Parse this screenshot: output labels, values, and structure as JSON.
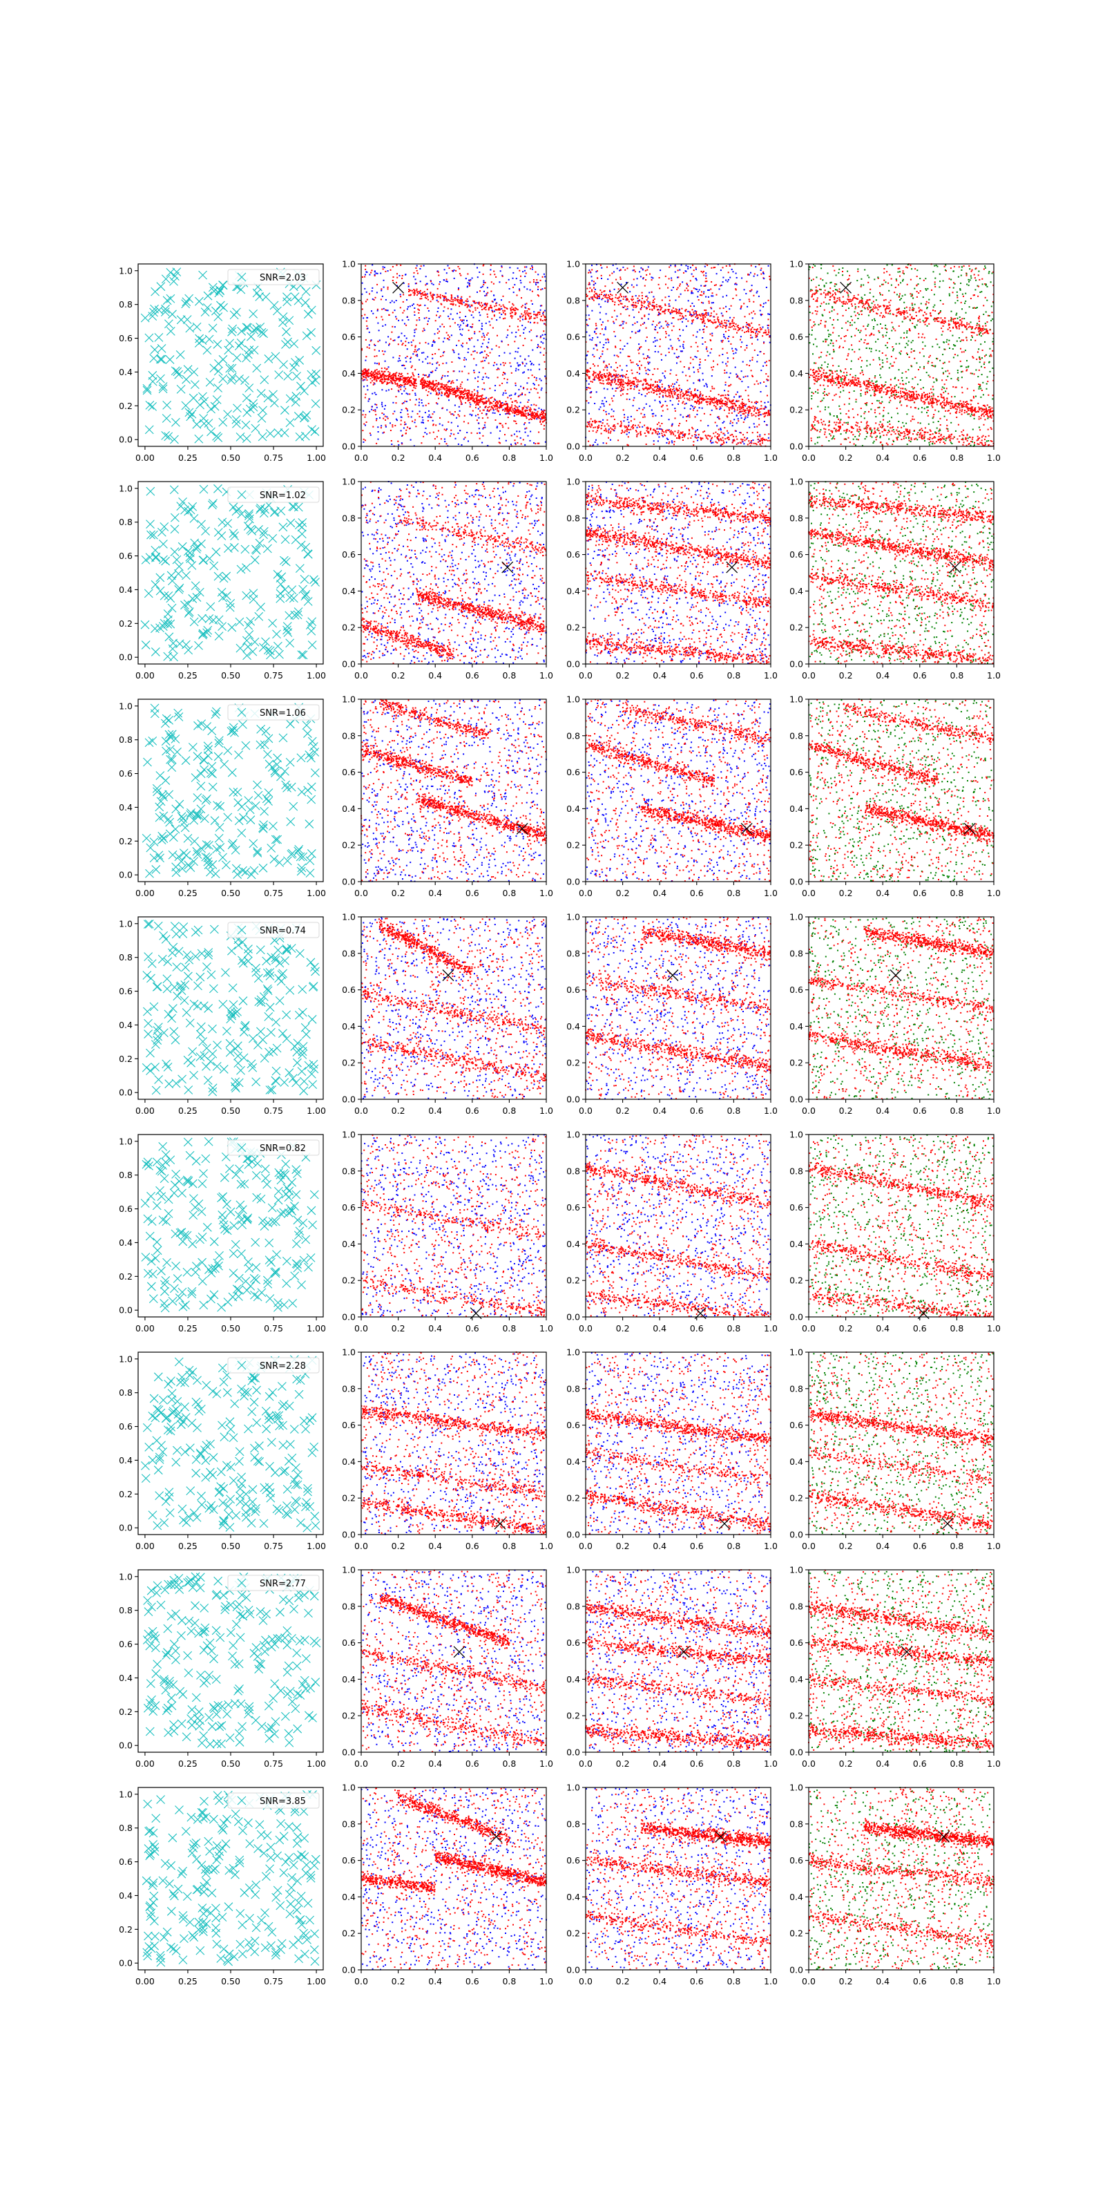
{
  "chart_data": {
    "type": "scatter",
    "grid": false,
    "layout": "8 rows x 4 columns of scatter subplots",
    "colors": {
      "cross_marker": "#19bfbf",
      "series_red": "#ff0000",
      "series_blue": "#0000ff",
      "series_green": "#008000",
      "target_marker": "#000000"
    },
    "column_axes": [
      {
        "column": 1,
        "xlim": [
          -0.04,
          1.04
        ],
        "ylim": [
          -0.04,
          1.04
        ],
        "xticks": [
          0.0,
          0.25,
          0.5,
          0.75,
          1.0
        ],
        "xtick_labels": [
          "0.00",
          "0.25",
          "0.50",
          "0.75",
          "1.00"
        ],
        "yticks": [
          0.0,
          0.2,
          0.4,
          0.6,
          0.8,
          1.0
        ],
        "ytick_labels": [
          "0.0",
          "0.2",
          "0.4",
          "0.6",
          "0.8",
          "1.0"
        ]
      },
      {
        "column": 2,
        "xlim": [
          0,
          1
        ],
        "ylim": [
          0,
          1
        ],
        "xticks": [
          0.0,
          0.2,
          0.4,
          0.6,
          0.8,
          1.0
        ],
        "xtick_labels": [
          "0.0",
          "0.2",
          "0.4",
          "0.6",
          "0.8",
          "1.0"
        ],
        "yticks": [
          0.0,
          0.2,
          0.4,
          0.6,
          0.8,
          1.0
        ],
        "ytick_labels": [
          "0.0",
          "0.2",
          "0.4",
          "0.6",
          "0.8",
          "1.0"
        ]
      },
      {
        "column": 3,
        "xlim": [
          0,
          1
        ],
        "ylim": [
          0,
          1
        ],
        "xticks": [
          0.0,
          0.2,
          0.4,
          0.6,
          0.8,
          1.0
        ],
        "xtick_labels": [
          "0.0",
          "0.2",
          "0.4",
          "0.6",
          "0.8",
          "1.0"
        ],
        "yticks": [
          0.0,
          0.2,
          0.4,
          0.6,
          0.8,
          1.0
        ],
        "ytick_labels": [
          "0.0",
          "0.2",
          "0.4",
          "0.6",
          "0.8",
          "1.0"
        ]
      },
      {
        "column": 4,
        "xlim": [
          0,
          1
        ],
        "ylim": [
          0,
          1
        ],
        "xticks": [
          0.0,
          0.2,
          0.4,
          0.6,
          0.8,
          1.0
        ],
        "xtick_labels": [
          "0.0",
          "0.2",
          "0.4",
          "0.6",
          "0.8",
          "1.0"
        ],
        "yticks": [
          0.0,
          0.2,
          0.4,
          0.6,
          0.8,
          1.0
        ],
        "ytick_labels": [
          "0.0",
          "0.2",
          "0.4",
          "0.6",
          "0.8",
          "1.0"
        ]
      }
    ],
    "rows": [
      {
        "legend": "SNR=2.03",
        "target": [
          0.2,
          0.87
        ],
        "col2_bands": [
          {
            "x0": 0.32,
            "x1": 1.0,
            "y0": 0.35,
            "y1": 0.15,
            "strength": 0.85
          },
          {
            "x0": 0.0,
            "x1": 0.3,
            "y0": 0.4,
            "y1": 0.35,
            "strength": 0.45
          },
          {
            "x0": 0.25,
            "x1": 1.0,
            "y0": 0.85,
            "y1": 0.7,
            "strength": 0.35
          }
        ],
        "col3_bands": [
          {
            "x0": 0.0,
            "x1": 1.0,
            "y0": 0.4,
            "y1": 0.18,
            "strength": 0.8
          },
          {
            "x0": 0.0,
            "x1": 1.0,
            "y0": 0.85,
            "y1": 0.62,
            "strength": 0.45
          },
          {
            "x0": 0.0,
            "x1": 1.0,
            "y0": 0.12,
            "y1": 0.02,
            "strength": 0.35
          }
        ],
        "col4_bands": [
          {
            "x0": 0.0,
            "x1": 1.0,
            "y0": 0.4,
            "y1": 0.18,
            "strength": 0.8
          },
          {
            "x0": 0.0,
            "x1": 1.0,
            "y0": 0.85,
            "y1": 0.62,
            "strength": 0.45
          },
          {
            "x0": 0.0,
            "x1": 1.0,
            "y0": 0.12,
            "y1": 0.02,
            "strength": 0.35
          }
        ]
      },
      {
        "legend": "SNR=1.02",
        "target": [
          0.79,
          0.53
        ],
        "col2_bands": [
          {
            "x0": 0.3,
            "x1": 1.0,
            "y0": 0.38,
            "y1": 0.2,
            "strength": 0.75
          },
          {
            "x0": 0.0,
            "x1": 0.5,
            "y0": 0.22,
            "y1": 0.05,
            "strength": 0.45
          },
          {
            "x0": 0.2,
            "x1": 1.0,
            "y0": 0.8,
            "y1": 0.62,
            "strength": 0.3
          }
        ],
        "col3_bands": [
          {
            "x0": 0.0,
            "x1": 1.0,
            "y0": 0.72,
            "y1": 0.55,
            "strength": 0.75
          },
          {
            "x0": 0.0,
            "x1": 1.0,
            "y0": 0.9,
            "y1": 0.8,
            "strength": 0.6
          },
          {
            "x0": 0.0,
            "x1": 1.0,
            "y0": 0.48,
            "y1": 0.33,
            "strength": 0.5
          },
          {
            "x0": 0.0,
            "x1": 1.0,
            "y0": 0.12,
            "y1": 0.02,
            "strength": 0.55
          }
        ],
        "col4_bands": [
          {
            "x0": 0.0,
            "x1": 1.0,
            "y0": 0.72,
            "y1": 0.55,
            "strength": 0.75
          },
          {
            "x0": 0.0,
            "x1": 1.0,
            "y0": 0.9,
            "y1": 0.8,
            "strength": 0.6
          },
          {
            "x0": 0.0,
            "x1": 1.0,
            "y0": 0.48,
            "y1": 0.33,
            "strength": 0.5
          },
          {
            "x0": 0.0,
            "x1": 1.0,
            "y0": 0.12,
            "y1": 0.02,
            "strength": 0.55
          }
        ]
      },
      {
        "legend": "SNR=1.06",
        "target": [
          0.87,
          0.29
        ],
        "col2_bands": [
          {
            "x0": 0.3,
            "x1": 1.0,
            "y0": 0.45,
            "y1": 0.25,
            "strength": 0.75
          },
          {
            "x0": 0.0,
            "x1": 0.6,
            "y0": 0.72,
            "y1": 0.55,
            "strength": 0.55
          },
          {
            "x0": 0.1,
            "x1": 0.7,
            "y0": 0.98,
            "y1": 0.8,
            "strength": 0.4
          }
        ],
        "col3_bands": [
          {
            "x0": 0.3,
            "x1": 1.0,
            "y0": 0.4,
            "y1": 0.25,
            "strength": 0.75
          },
          {
            "x0": 0.0,
            "x1": 0.7,
            "y0": 0.75,
            "y1": 0.55,
            "strength": 0.55
          },
          {
            "x0": 0.2,
            "x1": 1.0,
            "y0": 0.95,
            "y1": 0.78,
            "strength": 0.4
          }
        ],
        "col4_bands": [
          {
            "x0": 0.3,
            "x1": 1.0,
            "y0": 0.4,
            "y1": 0.25,
            "strength": 0.75
          },
          {
            "x0": 0.0,
            "x1": 0.7,
            "y0": 0.75,
            "y1": 0.55,
            "strength": 0.55
          },
          {
            "x0": 0.2,
            "x1": 1.0,
            "y0": 0.95,
            "y1": 0.78,
            "strength": 0.4
          }
        ]
      },
      {
        "legend": "SNR=0.74",
        "target": [
          0.47,
          0.68
        ],
        "col2_bands": [
          {
            "x0": 0.1,
            "x1": 0.6,
            "y0": 0.95,
            "y1": 0.7,
            "strength": 0.6
          },
          {
            "x0": 0.0,
            "x1": 1.0,
            "y0": 0.58,
            "y1": 0.38,
            "strength": 0.4
          },
          {
            "x0": 0.0,
            "x1": 1.0,
            "y0": 0.32,
            "y1": 0.12,
            "strength": 0.4
          }
        ],
        "col3_bands": [
          {
            "x0": 0.3,
            "x1": 1.0,
            "y0": 0.92,
            "y1": 0.8,
            "strength": 0.65
          },
          {
            "x0": 0.0,
            "x1": 1.0,
            "y0": 0.35,
            "y1": 0.18,
            "strength": 0.65
          },
          {
            "x0": 0.0,
            "x1": 1.0,
            "y0": 0.65,
            "y1": 0.5,
            "strength": 0.4
          }
        ],
        "col4_bands": [
          {
            "x0": 0.3,
            "x1": 1.0,
            "y0": 0.92,
            "y1": 0.8,
            "strength": 0.65
          },
          {
            "x0": 0.0,
            "x1": 1.0,
            "y0": 0.35,
            "y1": 0.18,
            "strength": 0.65
          },
          {
            "x0": 0.0,
            "x1": 1.0,
            "y0": 0.65,
            "y1": 0.5,
            "strength": 0.4
          }
        ]
      },
      {
        "legend": "SNR=0.82",
        "target": [
          0.62,
          0.02
        ],
        "col2_bands": [
          {
            "x0": 0.0,
            "x1": 1.0,
            "y0": 0.62,
            "y1": 0.45,
            "strength": 0.3
          },
          {
            "x0": 0.0,
            "x1": 1.0,
            "y0": 0.2,
            "y1": 0.02,
            "strength": 0.3
          }
        ],
        "col3_bands": [
          {
            "x0": 0.0,
            "x1": 1.0,
            "y0": 0.82,
            "y1": 0.62,
            "strength": 0.55
          },
          {
            "x0": 0.0,
            "x1": 1.0,
            "y0": 0.4,
            "y1": 0.22,
            "strength": 0.45
          },
          {
            "x0": 0.0,
            "x1": 1.0,
            "y0": 0.12,
            "y1": 0.0,
            "strength": 0.4
          }
        ],
        "col4_bands": [
          {
            "x0": 0.0,
            "x1": 1.0,
            "y0": 0.82,
            "y1": 0.62,
            "strength": 0.55
          },
          {
            "x0": 0.0,
            "x1": 1.0,
            "y0": 0.4,
            "y1": 0.22,
            "strength": 0.45
          },
          {
            "x0": 0.0,
            "x1": 1.0,
            "y0": 0.12,
            "y1": 0.0,
            "strength": 0.4
          }
        ]
      },
      {
        "legend": "SNR=2.28",
        "target": [
          0.75,
          0.06
        ],
        "col2_bands": [
          {
            "x0": 0.0,
            "x1": 1.0,
            "y0": 0.68,
            "y1": 0.55,
            "strength": 0.7
          },
          {
            "x0": 0.0,
            "x1": 1.0,
            "y0": 0.18,
            "y1": 0.02,
            "strength": 0.55
          },
          {
            "x0": 0.0,
            "x1": 1.0,
            "y0": 0.38,
            "y1": 0.22,
            "strength": 0.4
          }
        ],
        "col3_bands": [
          {
            "x0": 0.0,
            "x1": 1.0,
            "y0": 0.66,
            "y1": 0.52,
            "strength": 0.75
          },
          {
            "x0": 0.0,
            "x1": 1.0,
            "y0": 0.22,
            "y1": 0.05,
            "strength": 0.55
          },
          {
            "x0": 0.0,
            "x1": 1.0,
            "y0": 0.45,
            "y1": 0.3,
            "strength": 0.3
          }
        ],
        "col4_bands": [
          {
            "x0": 0.0,
            "x1": 1.0,
            "y0": 0.66,
            "y1": 0.52,
            "strength": 0.75
          },
          {
            "x0": 0.0,
            "x1": 1.0,
            "y0": 0.22,
            "y1": 0.05,
            "strength": 0.55
          },
          {
            "x0": 0.0,
            "x1": 1.0,
            "y0": 0.45,
            "y1": 0.3,
            "strength": 0.3
          }
        ]
      },
      {
        "legend": "SNR=2.77",
        "target": [
          0.53,
          0.55
        ],
        "col2_bands": [
          {
            "x0": 0.1,
            "x1": 0.8,
            "y0": 0.85,
            "y1": 0.6,
            "strength": 0.75
          },
          {
            "x0": 0.0,
            "x1": 1.0,
            "y0": 0.55,
            "y1": 0.35,
            "strength": 0.45
          },
          {
            "x0": 0.0,
            "x1": 1.0,
            "y0": 0.25,
            "y1": 0.05,
            "strength": 0.4
          }
        ],
        "col3_bands": [
          {
            "x0": 0.0,
            "x1": 1.0,
            "y0": 0.8,
            "y1": 0.65,
            "strength": 0.65
          },
          {
            "x0": 0.0,
            "x1": 1.0,
            "y0": 0.6,
            "y1": 0.5,
            "strength": 0.55
          },
          {
            "x0": 0.0,
            "x1": 1.0,
            "y0": 0.12,
            "y1": 0.05,
            "strength": 0.65
          },
          {
            "x0": 0.0,
            "x1": 1.0,
            "y0": 0.4,
            "y1": 0.28,
            "strength": 0.4
          }
        ],
        "col4_bands": [
          {
            "x0": 0.0,
            "x1": 1.0,
            "y0": 0.8,
            "y1": 0.65,
            "strength": 0.65
          },
          {
            "x0": 0.0,
            "x1": 1.0,
            "y0": 0.6,
            "y1": 0.5,
            "strength": 0.55
          },
          {
            "x0": 0.0,
            "x1": 1.0,
            "y0": 0.12,
            "y1": 0.05,
            "strength": 0.65
          },
          {
            "x0": 0.0,
            "x1": 1.0,
            "y0": 0.4,
            "y1": 0.28,
            "strength": 0.4
          }
        ]
      },
      {
        "legend": "SNR=3.85",
        "target": [
          0.73,
          0.73
        ],
        "col2_bands": [
          {
            "x0": 0.4,
            "x1": 1.0,
            "y0": 0.62,
            "y1": 0.48,
            "strength": 0.8
          },
          {
            "x0": 0.2,
            "x1": 0.8,
            "y0": 0.95,
            "y1": 0.72,
            "strength": 0.6
          },
          {
            "x0": 0.0,
            "x1": 0.4,
            "y0": 0.5,
            "y1": 0.45,
            "strength": 0.45
          }
        ],
        "col3_bands": [
          {
            "x0": 0.3,
            "x1": 1.0,
            "y0": 0.78,
            "y1": 0.7,
            "strength": 0.9
          },
          {
            "x0": 0.0,
            "x1": 1.0,
            "y0": 0.6,
            "y1": 0.48,
            "strength": 0.5
          },
          {
            "x0": 0.0,
            "x1": 1.0,
            "y0": 0.3,
            "y1": 0.15,
            "strength": 0.4
          }
        ],
        "col4_bands": [
          {
            "x0": 0.3,
            "x1": 1.0,
            "y0": 0.78,
            "y1": 0.7,
            "strength": 0.9
          },
          {
            "x0": 0.0,
            "x1": 1.0,
            "y0": 0.6,
            "y1": 0.48,
            "strength": 0.5
          },
          {
            "x0": 0.0,
            "x1": 1.0,
            "y0": 0.3,
            "y1": 0.15,
            "strength": 0.4
          }
        ]
      }
    ]
  }
}
